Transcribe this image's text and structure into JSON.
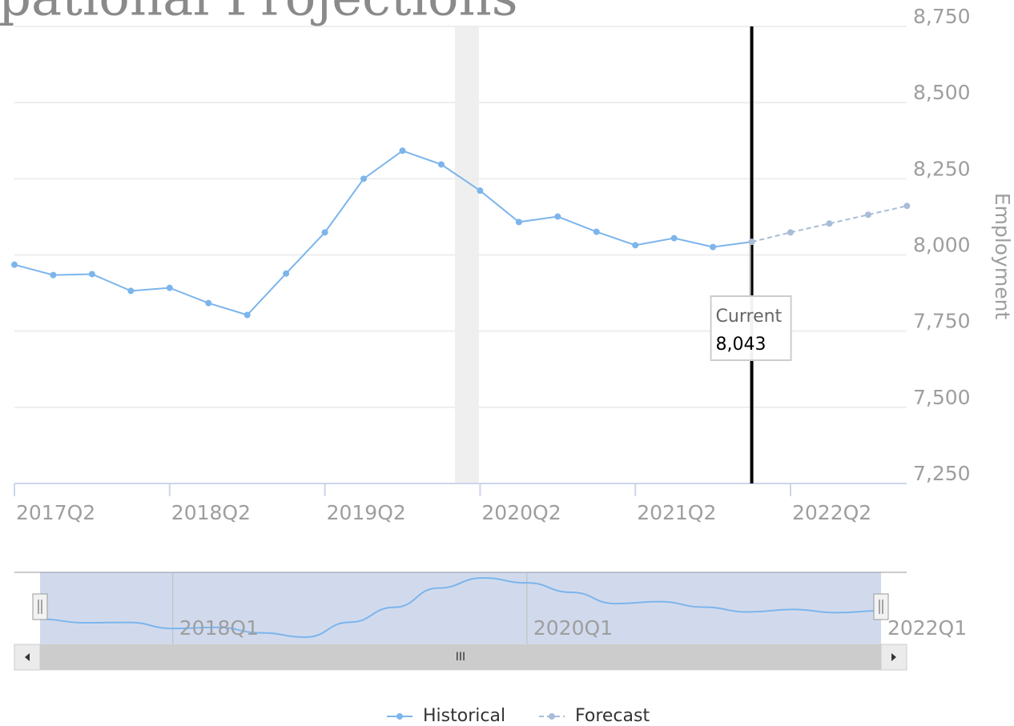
{
  "chart_data": {
    "type": "line",
    "title": "pational Projections",
    "y_axis_label": "Employment",
    "categories": [
      "2017Q2",
      null,
      null,
      null,
      "2018Q2",
      null,
      null,
      null,
      "2019Q2",
      null,
      null,
      null,
      "2020Q2",
      null,
      null,
      null,
      "2021Q2",
      null,
      null,
      null,
      "2022Q2",
      null,
      null,
      null
    ],
    "series": [
      {
        "name": "Historical",
        "color": "#7cb5ec",
        "dashed": false,
        "values": [
          7968,
          7934,
          7937,
          7882,
          7892,
          7842,
          7803,
          7939,
          8074,
          8250,
          8342,
          8297,
          8211,
          8108,
          8126,
          8076,
          8032,
          8055,
          8026,
          8043,
          null,
          null,
          null,
          null
        ]
      },
      {
        "name": "Forecast",
        "color": "#a9bcd8",
        "dashed": true,
        "values": [
          null,
          null,
          null,
          null,
          null,
          null,
          null,
          null,
          null,
          null,
          null,
          null,
          null,
          null,
          null,
          null,
          null,
          null,
          null,
          8043,
          8074,
          8103,
          8132,
          8161
        ]
      }
    ],
    "ylim": [
      7250,
      8750
    ],
    "yticks": [
      {
        "value": 7250,
        "label": "7,250"
      },
      {
        "value": 7500,
        "label": "7,500"
      },
      {
        "value": 7750,
        "label": "7,750"
      },
      {
        "value": 8000,
        "label": "8,000"
      },
      {
        "value": 8250,
        "label": "8,250"
      },
      {
        "value": 8500,
        "label": "8,500"
      },
      {
        "value": 8750,
        "label": "8,750"
      }
    ],
    "grid": true,
    "tooltip": {
      "title": "Current",
      "value": 8043,
      "value_label": "8,043"
    },
    "navigator": {
      "labels": [
        "2018Q1",
        "2020Q1",
        "2022Q1"
      ]
    },
    "legend": "bottom"
  }
}
